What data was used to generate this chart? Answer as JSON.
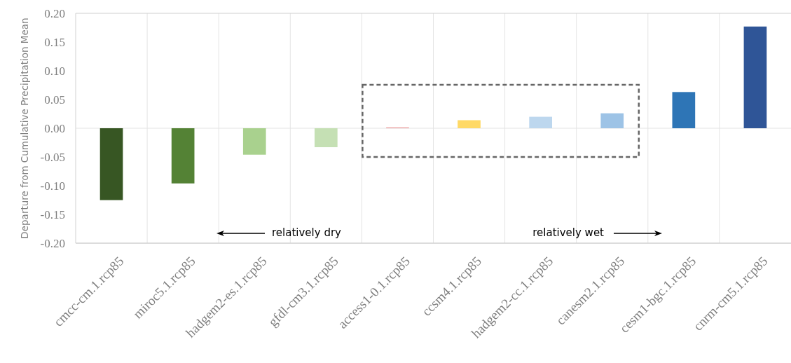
{
  "chart_data": {
    "type": "bar",
    "ylabel": "Departure from Cumulative Precipitation Mean",
    "categories": [
      "cmcc-cm.1.rcp85",
      "miroc5.1.rcp85",
      "hadgem2-es.1.rcp85",
      "gfdl-cm3.1.rcp85",
      "access1-0.1.rcp85",
      "ccsm4.1.rcp85",
      "hadgem2-cc.1.rcp85",
      "canesm2.1.rcp85",
      "cesm1-bgc.1.rcp85",
      "cnrm-cm5.1.rcp85"
    ],
    "values": [
      -0.125,
      -0.096,
      -0.046,
      -0.033,
      0.001,
      0.014,
      0.02,
      0.026,
      0.063,
      0.177
    ],
    "colors": [
      "#375623",
      "#548235",
      "#a9d18e",
      "#c5e0b4",
      "#e06666",
      "#ffd966",
      "#bdd7ee",
      "#9dc3e6",
      "#2e75b6",
      "#2f5597"
    ],
    "ylim": [
      -0.2,
      0.2
    ],
    "yticks": [
      {
        "value": -0.2,
        "label": "-0.20"
      },
      {
        "value": -0.15,
        "label": "-0.15"
      },
      {
        "value": -0.1,
        "label": "-0.10"
      },
      {
        "value": -0.05,
        "label": "-0.05"
      },
      {
        "value": 0,
        "label": "0.00"
      },
      {
        "value": 0.05,
        "label": "0.05"
      },
      {
        "value": 0.1,
        "label": "0.10"
      },
      {
        "value": 0.15,
        "label": "0.15"
      },
      {
        "value": 0.2,
        "label": "0.20"
      }
    ],
    "grid": "x",
    "ref_lines": [
      {
        "axis": "y",
        "value": 0,
        "color": "#e4e4e4"
      }
    ],
    "annotations": [
      "relatively dry",
      "relatively wet"
    ]
  }
}
